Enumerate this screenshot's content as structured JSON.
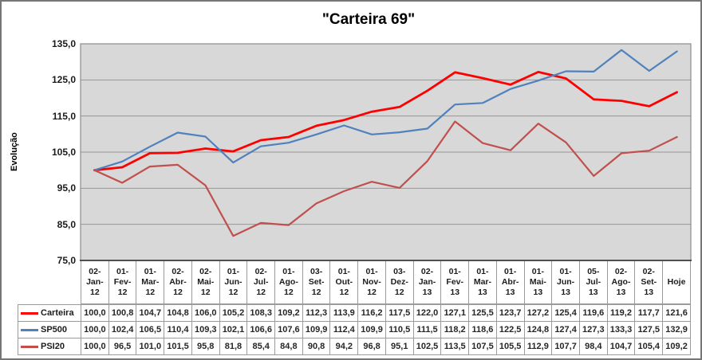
{
  "chart_data": {
    "type": "line",
    "title": "\"Carteira 69\"",
    "y_axis_title": "Evolução",
    "decimal_separator": ",",
    "grid": true,
    "plot_bg": "#D8D8D8",
    "gridline_color": "#969696",
    "plot_border_color": "#8C8C8C",
    "axis_line_color": "#4F4F4F",
    "ylim": [
      75,
      135
    ],
    "y_ticks": [
      135,
      125,
      115,
      105,
      95,
      85,
      75
    ],
    "legend_position": "table-left",
    "categories": [
      "02-Jan-12",
      "01-Fev-12",
      "01-Mar-12",
      "02-Abr-12",
      "02-Mai-12",
      "01-Jun-12",
      "02-Jul-12",
      "01-Ago-12",
      "03-Set-12",
      "01-Out-12",
      "01-Nov-12",
      "03-Dez-12",
      "02-Jan-13",
      "01-Fev-13",
      "01-Mar-13",
      "01-Abr-13",
      "01-Mai-13",
      "01-Jun-13",
      "05-Jul-13",
      "02-Ago-13",
      "02-Set-13",
      "Hoje"
    ],
    "series": [
      {
        "name": "Carteira",
        "color": "#FF0000",
        "values": [
          100.0,
          100.8,
          104.7,
          104.8,
          106.0,
          105.2,
          108.3,
          109.2,
          112.3,
          113.9,
          116.2,
          117.5,
          122.0,
          127.1,
          125.5,
          123.7,
          127.2,
          125.4,
          119.6,
          119.2,
          117.7,
          121.6
        ]
      },
      {
        "name": "SP500",
        "color": "#4F81BD",
        "values": [
          100.0,
          102.4,
          106.5,
          110.4,
          109.3,
          102.1,
          106.6,
          107.6,
          109.9,
          112.4,
          109.9,
          110.5,
          111.5,
          118.2,
          118.6,
          122.5,
          124.8,
          127.4,
          127.3,
          133.3,
          127.5,
          132.9
        ]
      },
      {
        "name": "PSI20",
        "color": "#C0504D",
        "values": [
          100.0,
          96.5,
          101.0,
          101.5,
          95.8,
          81.8,
          85.4,
          84.8,
          90.8,
          94.2,
          96.8,
          95.1,
          102.5,
          113.5,
          107.5,
          105.5,
          112.9,
          107.7,
          98.4,
          104.7,
          105.4,
          109.2
        ]
      }
    ]
  }
}
